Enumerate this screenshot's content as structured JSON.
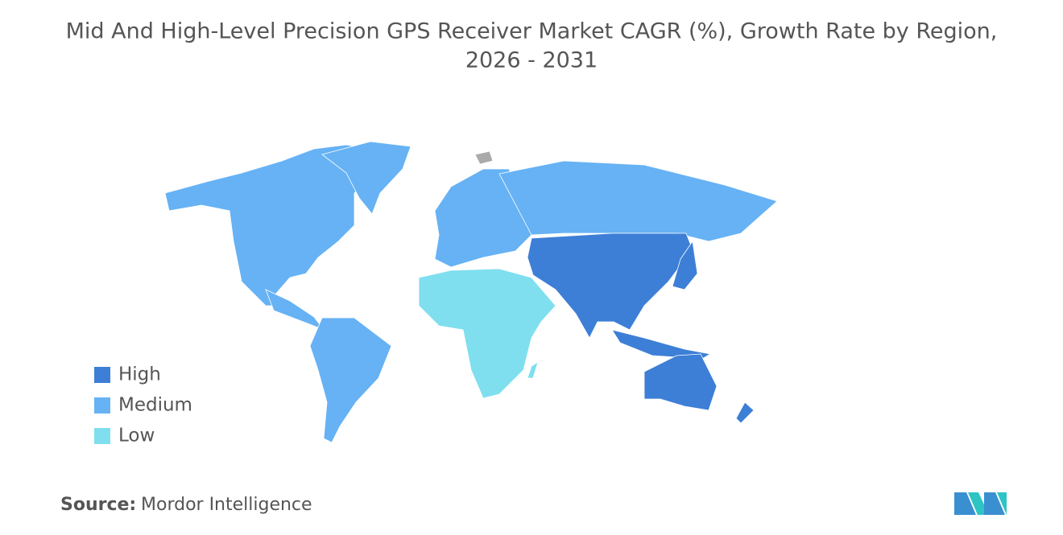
{
  "title": [
    "Mid And High-Level Precision GPS Receiver Market CAGR (%), Growth Rate by Region,",
    "2026 - 2031"
  ],
  "legend": [
    {
      "label": "High",
      "color": "#3d7fd6"
    },
    {
      "label": "Medium",
      "color": "#66b2f4"
    },
    {
      "label": "Low",
      "color": "#7fdfee"
    }
  ],
  "source": {
    "label": "Source:",
    "text": "Mordor Intelligence"
  }
}
